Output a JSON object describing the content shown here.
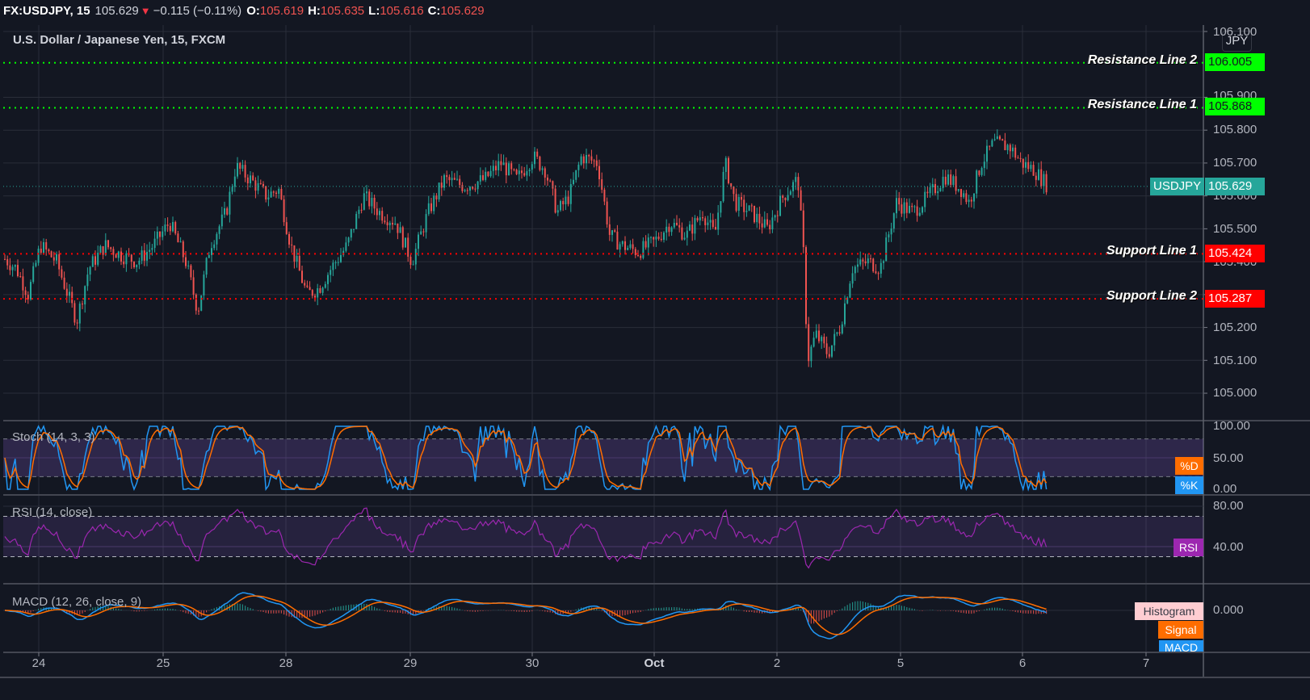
{
  "header": {
    "symbol": "FX:USDJPY, 15",
    "last": "105.629",
    "direction_icon": "down-triangle-icon",
    "change": "−0.115 (−0.11%)",
    "o_label": "O:",
    "o_value": "105.619",
    "h_label": "H:",
    "h_value": "105.635",
    "l_label": "L:",
    "l_value": "105.616",
    "c_label": "C:",
    "c_value": "105.629"
  },
  "main": {
    "legend": "U.S. Dollar / Japanese Yen, 15, FXCM",
    "currency_button": "JPY",
    "price_axis": [
      "106.100",
      "105.900",
      "105.800",
      "105.700",
      "105.600",
      "105.500",
      "105.400",
      "105.200",
      "105.100",
      "105.000"
    ],
    "current_price": {
      "symbol": "USDJPY",
      "value": "105.629"
    },
    "levels": [
      {
        "name": "Resistance Line 2",
        "value": "106.005",
        "color": "#00ff00"
      },
      {
        "name": "Resistance Line 1",
        "value": "105.868",
        "color": "#00ff00"
      },
      {
        "name": "Support Line 1",
        "value": "105.424",
        "color": "#ff0000"
      },
      {
        "name": "Support Line 2",
        "value": "105.287",
        "color": "#ff0000"
      }
    ]
  },
  "stoch": {
    "title": "Stoch (14, 3, 3)",
    "axis": [
      "100.00",
      "50.00",
      "0.00"
    ],
    "d_label": "%D",
    "k_label": "%K"
  },
  "rsi": {
    "title": "RSI (14, close)",
    "axis": [
      "80.00",
      "40.00"
    ],
    "label": "RSI"
  },
  "macd": {
    "title": "MACD (12, 26, close, 9)",
    "axis": [
      "0.000"
    ],
    "histogram_label": "Histogram",
    "signal_label": "Signal",
    "macd_label": "MACD"
  },
  "time_axis": [
    "24",
    "25",
    "28",
    "29",
    "30",
    "Oct",
    "2",
    "5",
    "6",
    "7"
  ],
  "colors": {
    "background": "#131722",
    "up": "#26a69a",
    "down": "#ef5350",
    "stoch_k": "#2196f3",
    "stoch_d": "#ff6d00",
    "rsi": "#9c27b0",
    "resistance": "#00ff00",
    "support": "#ff0000"
  },
  "chart_data": {
    "type": "candlestick",
    "title": "U.S. Dollar / Japanese Yen, 15, FXCM",
    "xlabel": "",
    "ylabel": "JPY",
    "ylim": [
      104.96,
      106.12
    ],
    "x": [
      "24",
      "25",
      "28",
      "29",
      "30",
      "Oct",
      "2",
      "5",
      "6",
      "7"
    ],
    "price_path": [
      [
        0,
        105.42
      ],
      [
        20,
        105.38
      ],
      [
        35,
        105.3
      ],
      [
        50,
        105.45
      ],
      [
        70,
        105.4
      ],
      [
        95,
        105.22
      ],
      [
        110,
        105.38
      ],
      [
        130,
        105.45
      ],
      [
        150,
        105.42
      ],
      [
        170,
        105.4
      ],
      [
        190,
        105.45
      ],
      [
        210,
        105.52
      ],
      [
        230,
        105.4
      ],
      [
        245,
        105.25
      ],
      [
        260,
        105.45
      ],
      [
        280,
        105.55
      ],
      [
        292,
        105.69
      ],
      [
        310,
        105.65
      ],
      [
        330,
        105.6
      ],
      [
        345,
        105.62
      ],
      [
        360,
        105.45
      ],
      [
        380,
        105.3
      ],
      [
        395,
        105.32
      ],
      [
        410,
        105.38
      ],
      [
        430,
        105.45
      ],
      [
        450,
        105.6
      ],
      [
        470,
        105.55
      ],
      [
        490,
        105.52
      ],
      [
        510,
        105.4
      ],
      [
        530,
        105.55
      ],
      [
        550,
        105.65
      ],
      [
        575,
        105.63
      ],
      [
        600,
        105.65
      ],
      [
        620,
        105.7
      ],
      [
        640,
        105.65
      ],
      [
        660,
        105.72
      ],
      [
        675,
        105.68
      ],
      [
        690,
        105.55
      ],
      [
        705,
        105.6
      ],
      [
        720,
        105.72
      ],
      [
        740,
        105.7
      ],
      [
        755,
        105.48
      ],
      [
        770,
        105.45
      ],
      [
        790,
        105.43
      ],
      [
        810,
        105.46
      ],
      [
        830,
        105.52
      ],
      [
        850,
        105.48
      ],
      [
        870,
        105.55
      ],
      [
        885,
        105.48
      ],
      [
        898,
        105.7
      ],
      [
        910,
        105.58
      ],
      [
        930,
        105.55
      ],
      [
        950,
        105.5
      ],
      [
        970,
        105.6
      ],
      [
        988,
        105.65
      ],
      [
        995,
        105.42
      ],
      [
        1000,
        105.1
      ],
      [
        1010,
        105.18
      ],
      [
        1025,
        105.12
      ],
      [
        1040,
        105.2
      ],
      [
        1055,
        105.38
      ],
      [
        1075,
        105.4
      ],
      [
        1090,
        105.38
      ],
      [
        1100,
        105.48
      ],
      [
        1110,
        105.58
      ],
      [
        1130,
        105.55
      ],
      [
        1150,
        105.6
      ],
      [
        1170,
        105.66
      ],
      [
        1190,
        105.62
      ],
      [
        1200,
        105.58
      ],
      [
        1215,
        105.7
      ],
      [
        1230,
        105.76
      ],
      [
        1250,
        105.75
      ],
      [
        1265,
        105.7
      ],
      [
        1280,
        105.68
      ],
      [
        1298,
        105.629
      ]
    ],
    "horizontal_lines": [
      {
        "label": "Resistance Line 2",
        "y": 106.005
      },
      {
        "label": "Resistance Line 1",
        "y": 105.868
      },
      {
        "label": "Support Line 1",
        "y": 105.424
      },
      {
        "label": "Support Line 2",
        "y": 105.287
      }
    ],
    "last_price": 105.629,
    "indicators": {
      "stoch": {
        "params": "14, 3, 3",
        "range": [
          0,
          100
        ],
        "bands": [
          80,
          20
        ]
      },
      "rsi": {
        "params": "14, close",
        "bands": [
          70,
          30
        ],
        "last": 38
      },
      "macd": {
        "params": "12, 26, close, 9",
        "zero": 0.0
      }
    }
  }
}
